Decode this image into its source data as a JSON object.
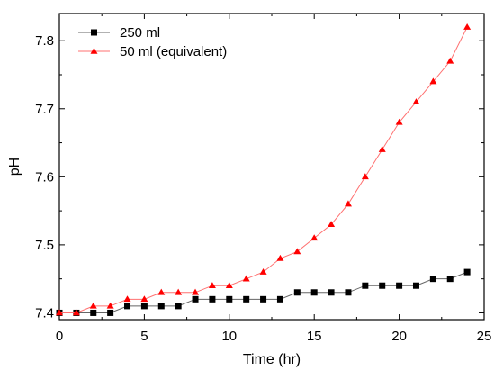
{
  "chart_data": {
    "type": "line",
    "title": "",
    "xlabel": "Time (hr)",
    "ylabel": "pH",
    "xlim": [
      0,
      25
    ],
    "ylim": [
      7.39,
      7.84
    ],
    "xticks": [
      0,
      5,
      10,
      15,
      20,
      25
    ],
    "yticks": [
      7.4,
      7.5,
      7.6,
      7.7,
      7.8
    ],
    "grid": false,
    "legend_position": "top-left",
    "series": [
      {
        "name": "250 ml",
        "color": "#000000",
        "line_color": "#666666",
        "marker": "square",
        "x": [
          0,
          1,
          2,
          3,
          4,
          5,
          6,
          7,
          8,
          9,
          10,
          11,
          12,
          13,
          14,
          15,
          16,
          17,
          18,
          19,
          20,
          21,
          22,
          23,
          24
        ],
        "y": [
          7.4,
          7.4,
          7.4,
          7.4,
          7.41,
          7.41,
          7.41,
          7.41,
          7.42,
          7.42,
          7.42,
          7.42,
          7.42,
          7.42,
          7.43,
          7.43,
          7.43,
          7.43,
          7.44,
          7.44,
          7.44,
          7.44,
          7.45,
          7.45,
          7.46
        ]
      },
      {
        "name": "50 ml (equivalent)",
        "color": "#ff0000",
        "line_color": "#ff7070",
        "marker": "triangle",
        "x": [
          0,
          1,
          2,
          3,
          4,
          5,
          6,
          7,
          8,
          9,
          10,
          11,
          12,
          13,
          14,
          15,
          16,
          17,
          18,
          19,
          20,
          21,
          22,
          23,
          24
        ],
        "y": [
          7.4,
          7.4,
          7.41,
          7.41,
          7.42,
          7.42,
          7.43,
          7.43,
          7.43,
          7.44,
          7.44,
          7.45,
          7.46,
          7.48,
          7.49,
          7.51,
          7.53,
          7.56,
          7.6,
          7.64,
          7.68,
          7.71,
          7.74,
          7.77,
          7.82
        ]
      }
    ]
  }
}
